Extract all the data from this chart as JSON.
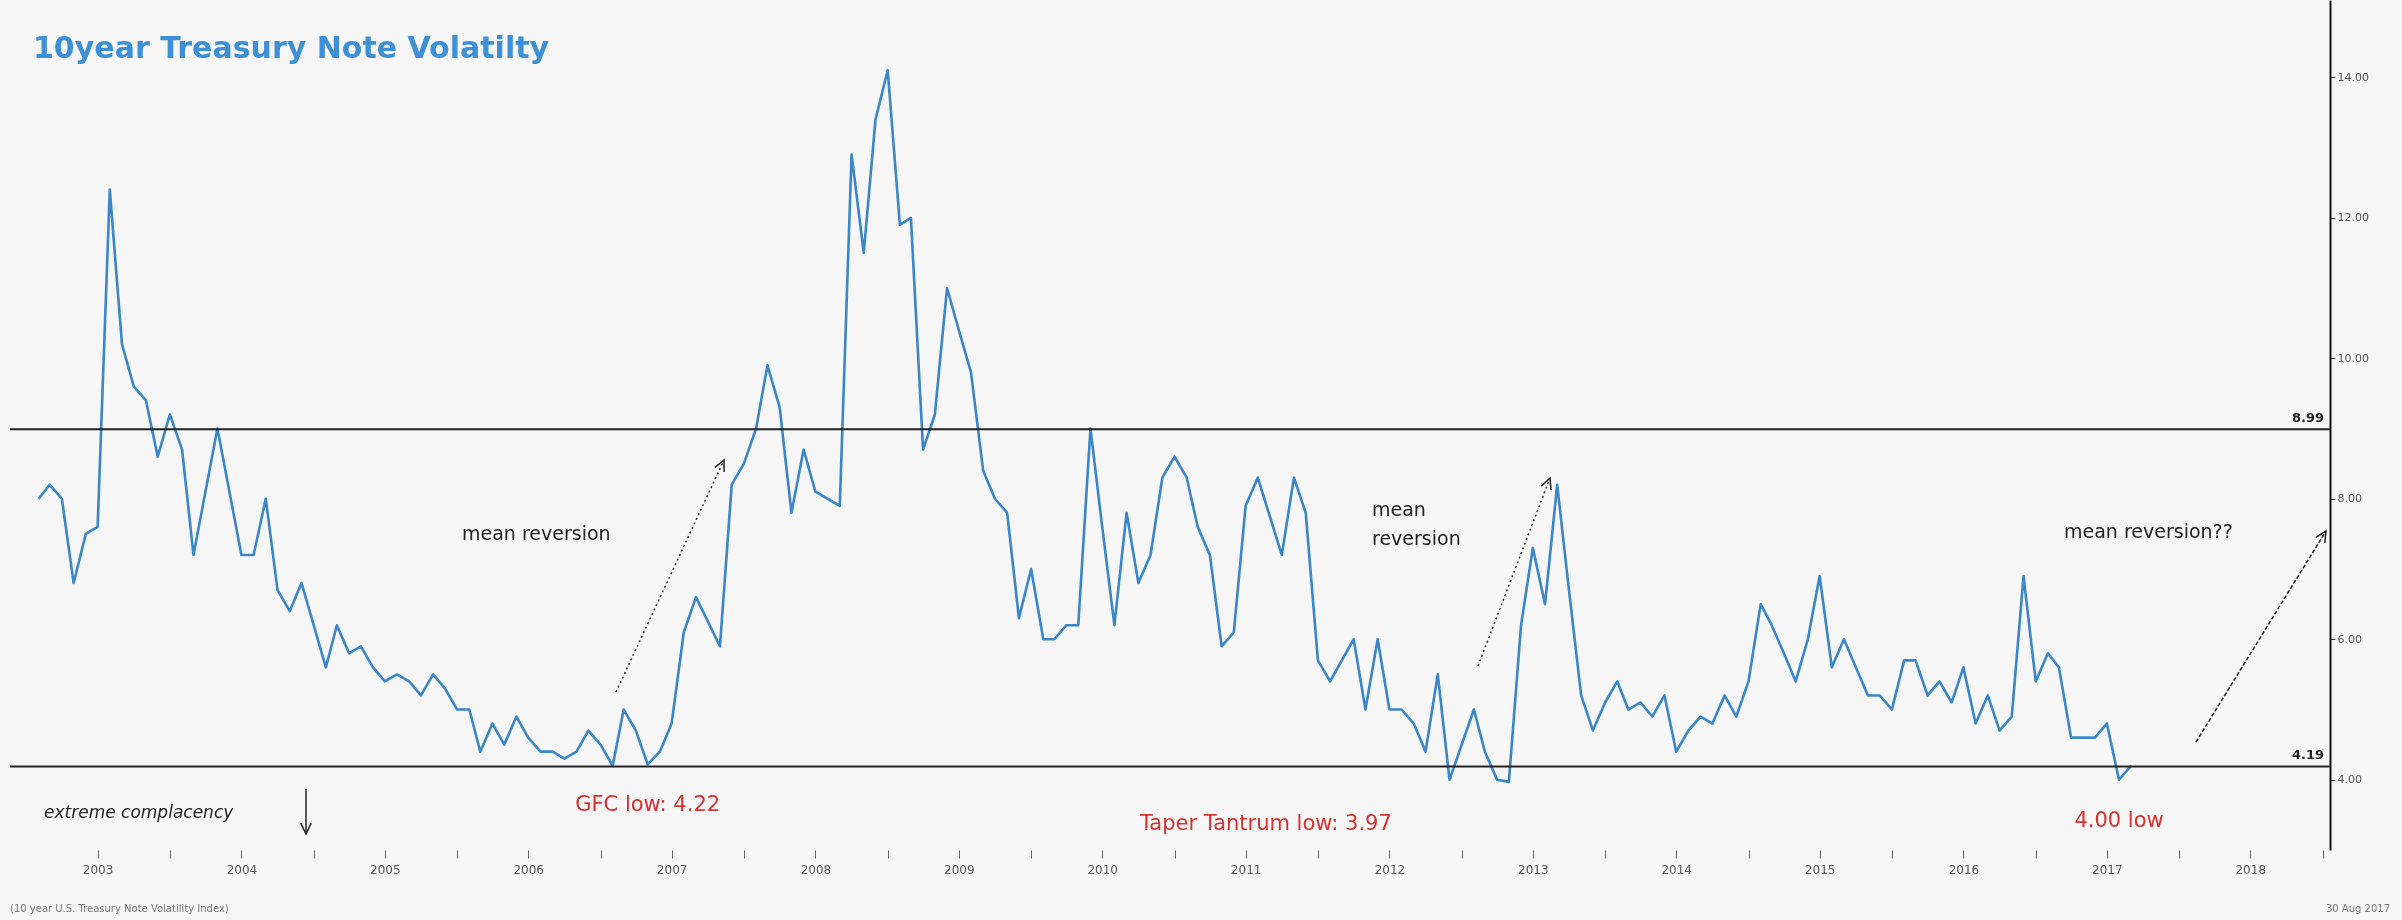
{
  "chart_data": {
    "type": "line",
    "title": "10year Treasury Note Volatilty",
    "x": [
      "2003-02",
      "2003-03",
      "2003-04",
      "2003-05",
      "2003-06",
      "2003-07",
      "2003-08",
      "2003-09",
      "2003-10",
      "2003-11",
      "2003-12",
      "2004-01",
      "2004-02",
      "2004-03",
      "2004-05",
      "2004-07",
      "2004-08",
      "2004-09",
      "2004-10",
      "2004-11",
      "2004-12",
      "2005-01",
      "2005-02",
      "2005-03",
      "2005-04",
      "2005-05",
      "2005-06",
      "2005-07",
      "2005-08",
      "2005-09",
      "2005-10",
      "2005-11",
      "2005-12",
      "2006-01",
      "2006-02",
      "2006-03",
      "2006-04",
      "2006-05",
      "2006-06",
      "2006-07",
      "2006-08",
      "2006-09",
      "2006-10",
      "2006-11",
      "2006-12",
      "2007-01",
      "2007-02",
      "2007-03",
      "2007-04",
      "2007-05",
      "2007-06",
      "2007-07",
      "2007-08",
      "2007-09",
      "2007-11",
      "2007-12",
      "2008-01",
      "2008-02",
      "2008-03",
      "2008-04",
      "2008-05",
      "2008-06",
      "2008-07",
      "2008-09",
      "2008-10",
      "2008-11",
      "2008-12",
      "2009-01",
      "2009-02",
      "2009-03",
      "2009-04",
      "2009-05",
      "2009-06",
      "2009-07",
      "2009-08",
      "2009-09",
      "2009-10",
      "2009-11",
      "2009-12",
      "2010-01",
      "2010-02",
      "2010-03",
      "2010-04",
      "2010-05",
      "2010-06",
      "2010-07",
      "2010-08",
      "2010-09",
      "2010-10",
      "2010-11",
      "2010-12",
      "2011-01",
      "2011-02",
      "2011-03",
      "2011-04",
      "2011-05",
      "2011-06",
      "2011-07",
      "2011-08",
      "2011-10",
      "2011-11",
      "2011-12",
      "2012-01",
      "2012-02",
      "2012-04",
      "2012-05",
      "2012-06",
      "2012-07",
      "2012-08",
      "2012-09",
      "2012-10",
      "2012-11",
      "2012-12",
      "2013-02",
      "2013-03",
      "2013-04",
      "2013-05",
      "2013-06",
      "2013-07",
      "2013-08",
      "2013-09",
      "2013-10",
      "2013-11",
      "2013-12",
      "2014-01",
      "2014-02",
      "2014-03",
      "2014-04",
      "2014-05",
      "2014-06",
      "2014-07",
      "2014-08",
      "2014-09",
      "2014-10",
      "2014-11",
      "2014-12",
      "2015-01",
      "2015-02",
      "2015-03",
      "2015-04",
      "2015-05",
      "2015-06",
      "2015-07",
      "2015-08",
      "2015-09",
      "2015-10",
      "2015-11",
      "2015-12",
      "2016-01",
      "2016-02",
      "2016-03",
      "2016-04",
      "2016-05",
      "2016-06",
      "2016-07",
      "2016-08",
      "2016-09",
      "2016-10",
      "2016-11",
      "2016-12",
      "2017-01",
      "2017-02",
      "2017-03",
      "2017-04",
      "2017-05",
      "2017-06",
      "2017-07",
      "2017-08",
      "2017-09"
    ],
    "series": [
      {
        "color": "#3a86c8",
        "values": [
          8.0,
          8.2,
          8.0,
          6.8,
          7.5,
          7.6,
          12.4,
          10.2,
          9.6,
          9.4,
          8.6,
          9.2,
          8.7,
          7.2,
          9.0,
          7.2,
          7.2,
          8.0,
          6.7,
          6.4,
          6.8,
          6.2,
          5.6,
          6.2,
          5.8,
          5.9,
          5.6,
          5.4,
          5.5,
          5.4,
          5.2,
          5.5,
          5.3,
          5.0,
          5.0,
          4.4,
          4.8,
          4.5,
          4.9,
          4.6,
          4.4,
          4.4,
          4.3,
          4.4,
          4.7,
          4.5,
          4.2,
          5.0,
          4.7,
          4.22,
          4.4,
          4.8,
          6.1,
          6.6,
          5.9,
          8.2,
          8.5,
          9.0,
          9.9,
          9.3,
          7.8,
          8.7,
          8.1,
          7.9,
          12.9,
          11.5,
          13.4,
          14.1,
          11.9,
          12.0,
          8.7,
          9.2,
          11.0,
          10.4,
          9.8,
          8.4,
          8.0,
          7.8,
          6.3,
          7.0,
          6.0,
          6.0,
          6.2,
          6.2,
          9.0,
          7.6,
          6.2,
          7.8,
          6.8,
          7.2,
          8.3,
          8.6,
          8.3,
          7.6,
          7.2,
          5.9,
          6.1,
          7.9,
          8.3,
          7.2,
          8.3,
          7.8,
          5.7,
          5.4,
          6.0,
          5.0,
          6.0,
          5.0,
          5.0,
          4.8,
          4.4,
          5.5,
          4.0,
          5.0,
          4.4,
          4.0,
          3.97,
          6.2,
          7.3,
          6.5,
          8.2,
          6.7,
          5.2,
          4.7,
          5.1,
          5.4,
          5.0,
          5.1,
          4.9,
          5.2,
          4.4,
          4.7,
          4.9,
          4.8,
          5.2,
          4.9,
          5.4,
          6.5,
          6.2,
          5.8,
          5.4,
          6.0,
          6.9,
          5.6,
          6.0,
          5.6,
          5.2,
          5.2,
          5.0,
          5.7,
          5.7,
          5.2,
          5.4,
          5.1,
          5.6,
          4.8,
          5.2,
          4.7,
          4.9,
          6.9,
          5.4,
          5.8,
          5.6,
          4.6,
          4.6,
          4.6,
          4.8,
          4.0,
          4.2
        ]
      }
    ],
    "xlim": [
      "2002-11-20",
      "2019-01-20"
    ],
    "xticks": [
      {
        "value": "2003-07-01",
        "label": "2003"
      },
      {
        "value": "2004-01-01",
        "label": null
      },
      {
        "value": "2004-07-01",
        "label": "2004"
      },
      {
        "value": "2005-01-01",
        "label": null
      },
      {
        "value": "2005-07-01",
        "label": "2005"
      },
      {
        "value": "2006-01-01",
        "label": null
      },
      {
        "value": "2006-07-01",
        "label": "2006"
      },
      {
        "value": "2007-01-01",
        "label": null
      },
      {
        "value": "2007-07-01",
        "label": "2007"
      },
      {
        "value": "2008-01-01",
        "label": null
      },
      {
        "value": "2008-07-01",
        "label": "2008"
      },
      {
        "value": "2009-01-01",
        "label": null
      },
      {
        "value": "2009-07-01",
        "label": "2009"
      },
      {
        "value": "2010-01-01",
        "label": null
      },
      {
        "value": "2010-07-01",
        "label": "2010"
      },
      {
        "value": "2011-01-01",
        "label": null
      },
      {
        "value": "2011-07-01",
        "label": "2011"
      },
      {
        "value": "2012-01-01",
        "label": null
      },
      {
        "value": "2012-07-01",
        "label": "2012"
      },
      {
        "value": "2013-01-01",
        "label": null
      },
      {
        "value": "2013-07-01",
        "label": "2013"
      },
      {
        "value": "2014-01-01",
        "label": null
      },
      {
        "value": "2014-07-01",
        "label": "2014"
      },
      {
        "value": "2015-01-01",
        "label": null
      },
      {
        "value": "2015-07-01",
        "label": "2015"
      },
      {
        "value": "2016-01-01",
        "label": null
      },
      {
        "value": "2016-07-01",
        "label": "2016"
      },
      {
        "value": "2017-01-01",
        "label": null
      },
      {
        "value": "2017-07-01",
        "label": "2017"
      },
      {
        "value": "2018-01-01",
        "label": null
      },
      {
        "value": "2018-07-01",
        "label": "2018"
      },
      {
        "value": "2019-01-01",
        "label": null
      }
    ],
    "ylim": [
      3,
      15.1
    ],
    "yticks": [
      {
        "value": 4,
        "label": "4.00"
      },
      {
        "value": 6,
        "label": "6.00"
      },
      {
        "value": 8,
        "label": "8.00"
      },
      {
        "value": 10,
        "label": "10.00"
      },
      {
        "value": 12,
        "label": "12.00"
      },
      {
        "value": 14,
        "label": "14.00"
      }
    ],
    "ref_lines": [
      {
        "axis": "y",
        "value": 8.99,
        "label": "8.99",
        "color": "#222222"
      },
      {
        "axis": "y",
        "value": 4.19,
        "label": "4.19",
        "color": "#222222"
      }
    ],
    "annotations": [
      "extreme complacency",
      "mean reversion",
      "mean reversion",
      "mean reversion??",
      {
        "text": "GFC low: 4.22",
        "x": "2007-05",
        "y": 4.22
      },
      "Taper Tantrum low: 3.97",
      {
        "text": "4.00 low",
        "x": "2017-08",
        "y": 4.0
      },
      "(10 year U.S. Treasury Note Volatility Index)",
      "30 Aug 2017"
    ]
  }
}
